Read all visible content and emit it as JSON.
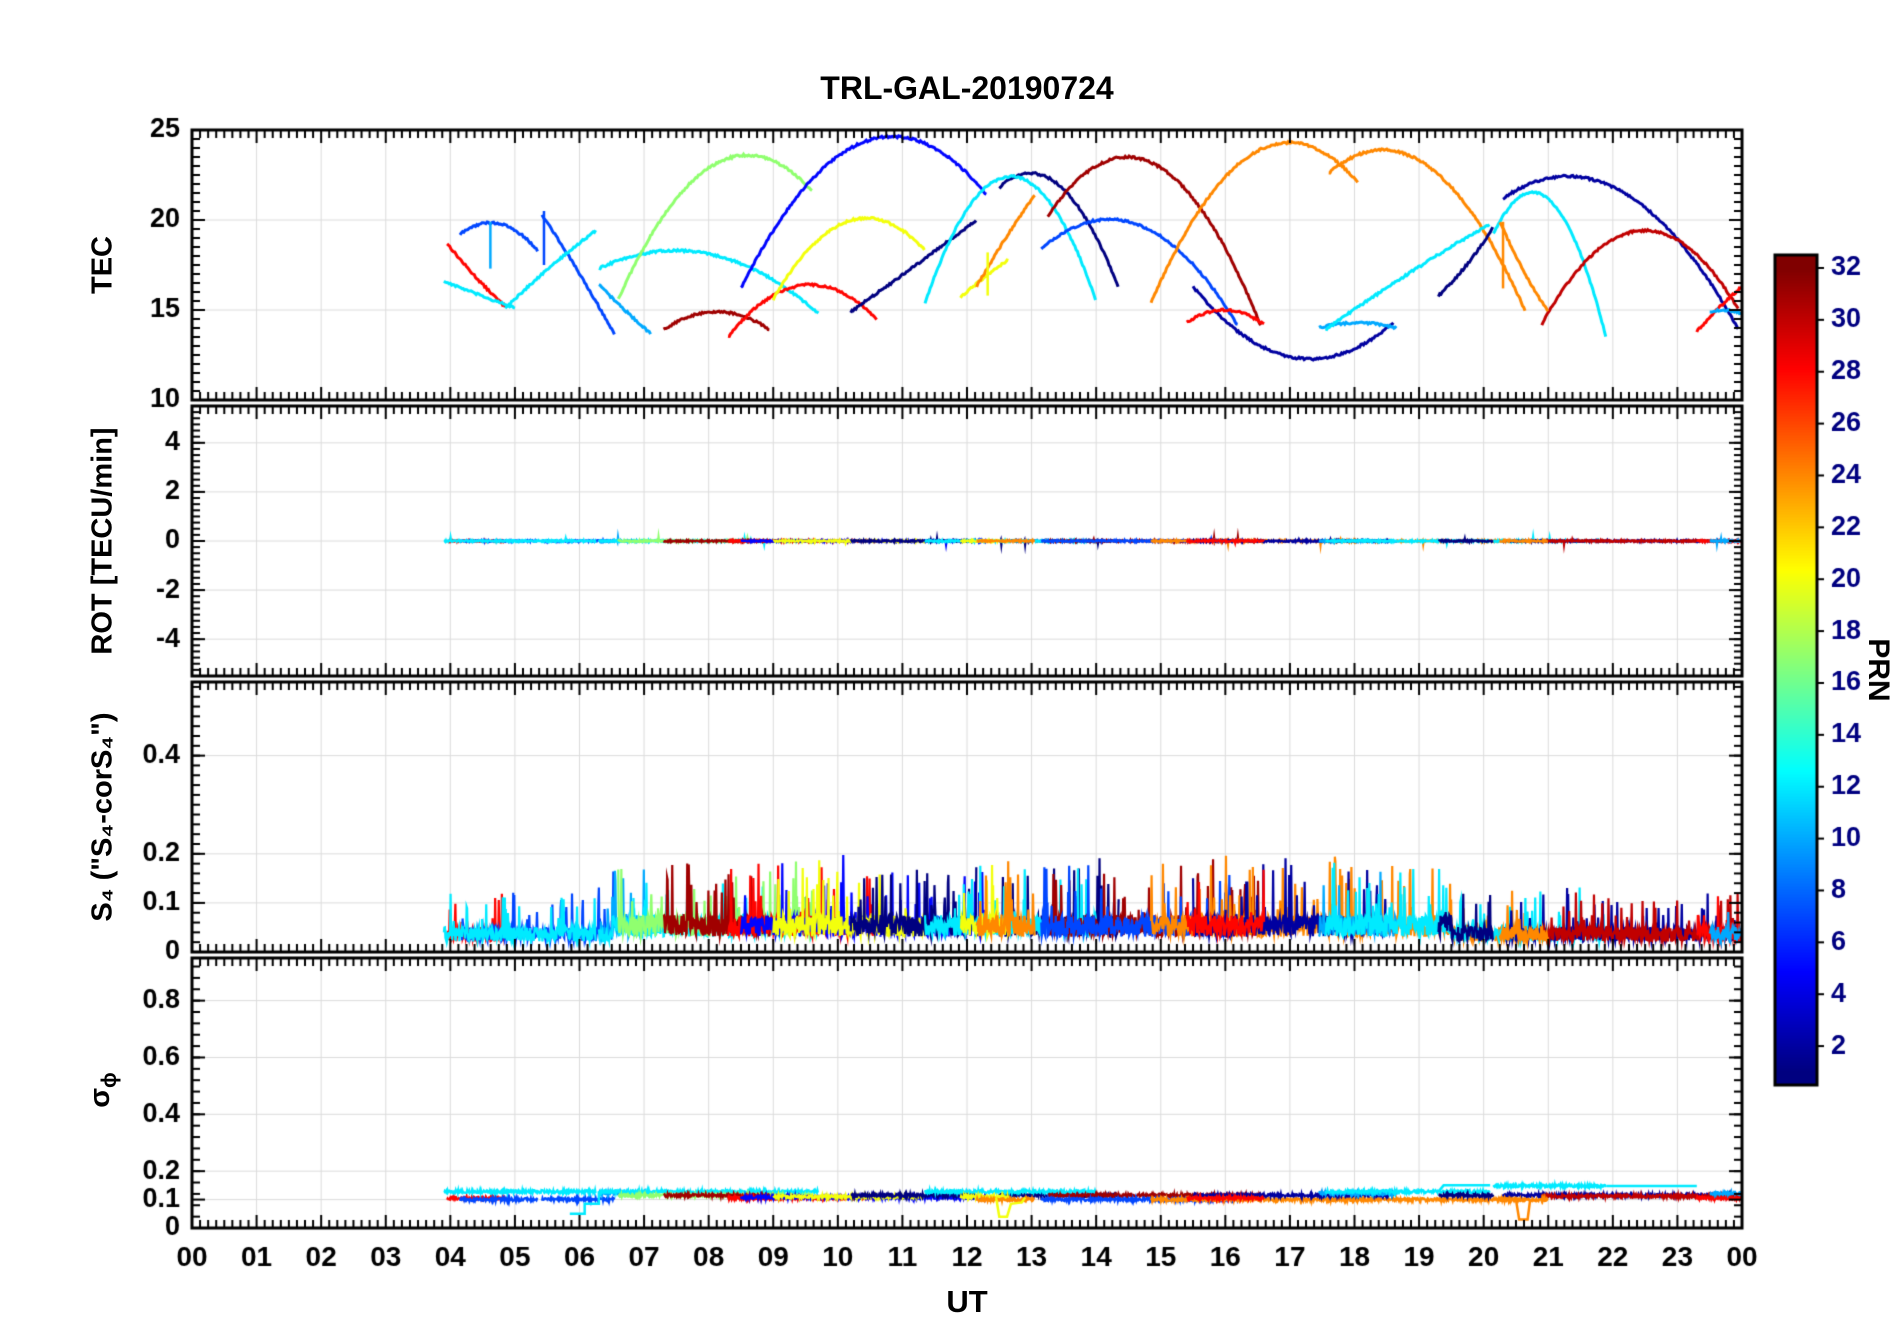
{
  "title": "TRL-GAL-20190724",
  "sigma_label": {
    "base": "σ",
    "sub": "ϕ"
  },
  "chart_data": {
    "type": "line",
    "title": "TRL-GAL-20190724",
    "xlabel": "UT",
    "x_range": [
      0,
      24
    ],
    "x_tick_labels": [
      "00",
      "01",
      "02",
      "03",
      "04",
      "05",
      "06",
      "07",
      "08",
      "09",
      "10",
      "11",
      "12",
      "13",
      "14",
      "15",
      "16",
      "17",
      "18",
      "19",
      "20",
      "21",
      "22",
      "23",
      "00"
    ],
    "grid": true,
    "colorbar": {
      "label": "PRN",
      "range": [
        1,
        32
      ],
      "ticks": [
        2,
        4,
        6,
        8,
        10,
        12,
        14,
        16,
        18,
        20,
        22,
        24,
        26,
        28,
        30,
        32
      ],
      "colormap": "jet"
    },
    "panels": [
      {
        "id": "tec",
        "ylabel": "TEC",
        "ylim": [
          10,
          25
        ],
        "yticks": [
          10,
          15,
          20,
          25
        ],
        "minor_step": 0.5
      },
      {
        "id": "rot",
        "ylabel": "ROT [TECU/min]",
        "ylim": [
          -5.5,
          5.5
        ],
        "yticks": [
          -4,
          -2,
          0,
          2,
          4
        ],
        "minor_step": 0.25
      },
      {
        "id": "s4",
        "ylabel": "S₄ (\"S₄-corS₄\")",
        "ylim": [
          0,
          0.55
        ],
        "yticks": [
          0,
          0.1,
          0.2,
          0.4
        ],
        "minor_step": 0.02
      },
      {
        "id": "sigma",
        "ylabel": "σϕ",
        "ylim": [
          0,
          0.95
        ],
        "yticks": [
          0,
          0.1,
          0.2,
          0.4,
          0.6,
          0.8
        ],
        "minor_step": 0.04
      }
    ],
    "arcs": [
      {
        "prn": 28,
        "t": [
          3.95,
          4.3,
          4.85
        ],
        "v": [
          18.7,
          17.2,
          15.2
        ],
        "sig": 0.105
      },
      {
        "prn": 7,
        "t": [
          4.15,
          4.75,
          5.35
        ],
        "v": [
          19.2,
          19.8,
          18.3
        ],
        "sig": 0.1
      },
      {
        "prn": 7,
        "t": [
          5.42,
          5.9,
          6.55
        ],
        "v": [
          20.3,
          17.6,
          13.6
        ],
        "sig": 0.1
      },
      {
        "prn": 12,
        "t": [
          3.9,
          4.4,
          5.0
        ],
        "v": [
          16.6,
          15.9,
          15.1
        ],
        "sig": 0.128
      },
      {
        "prn": 12,
        "t": [
          4.85,
          5.65,
          6.25
        ],
        "v": [
          15.1,
          17.7,
          19.4
        ],
        "sig": 0.128
      },
      {
        "prn": 10,
        "t": [
          6.3,
          6.7,
          7.1
        ],
        "v": [
          16.4,
          15.0,
          13.7
        ],
        "sig": 0.122
      },
      {
        "prn": 12,
        "t": [
          6.3,
          7.4,
          9.7
        ],
        "v": [
          17.3,
          18.3,
          14.8
        ],
        "sig": 0.128
      },
      {
        "prn": 17,
        "t": [
          6.6,
          8.65,
          9.6
        ],
        "v": [
          15.6,
          23.6,
          21.6
        ],
        "sig": 0.115
      },
      {
        "prn": 31,
        "t": [
          7.3,
          8.1,
          8.95
        ],
        "v": [
          13.9,
          14.9,
          13.9
        ],
        "sig": 0.115
      },
      {
        "prn": 28,
        "t": [
          8.3,
          9.6,
          10.6
        ],
        "v": [
          13.5,
          16.4,
          14.5
        ],
        "sig": 0.105
      },
      {
        "prn": 5,
        "t": [
          8.5,
          11.0,
          12.3
        ],
        "v": [
          16.2,
          24.6,
          21.4
        ],
        "sig": 0.108
      },
      {
        "prn": 20,
        "t": [
          9.0,
          10.45,
          11.35
        ],
        "v": [
          15.6,
          20.1,
          18.3
        ],
        "sig": 0.11
      },
      {
        "prn": 1,
        "t": [
          10.2,
          11.4,
          12.15
        ],
        "v": [
          14.9,
          18.0,
          20.0
        ],
        "sig": 0.115
      },
      {
        "prn": 1,
        "t": [
          12.5,
          13.0,
          14.35
        ],
        "v": [
          21.8,
          22.6,
          16.2
        ],
        "sig": 0.115
      },
      {
        "prn": 12,
        "t": [
          11.35,
          12.75,
          14.0
        ],
        "v": [
          15.4,
          22.4,
          15.5
        ],
        "sig": 0.128
      },
      {
        "prn": 20,
        "t": [
          11.9,
          12.3,
          12.65
        ],
        "v": [
          15.7,
          16.9,
          17.8
        ],
        "sig": 0.11
      },
      {
        "prn": 24,
        "t": [
          12.15,
          12.6,
          13.05
        ],
        "v": [
          16.3,
          19.0,
          21.4
        ],
        "sig": 0.1
      },
      {
        "prn": 31,
        "t": [
          13.25,
          15.0,
          16.55
        ],
        "v": [
          20.2,
          22.9,
          14.1
        ],
        "sig": 0.115
      },
      {
        "prn": 7,
        "t": [
          13.15,
          14.05,
          16.2
        ],
        "v": [
          18.4,
          20.0,
          14.1
        ],
        "sig": 0.1
      },
      {
        "prn": 24,
        "t": [
          14.85,
          17.0,
          18.05
        ],
        "v": [
          15.4,
          24.3,
          22.1
        ],
        "sig": 0.1
      },
      {
        "prn": 24,
        "t": [
          17.6,
          19.05,
          20.65
        ],
        "v": [
          22.6,
          23.2,
          14.9
        ],
        "sig": 0.1
      },
      {
        "prn": 2,
        "t": [
          15.5,
          16.4,
          18.6
        ],
        "v": [
          16.3,
          13.3,
          14.3
        ],
        "sig": 0.115
      },
      {
        "prn": 28,
        "t": [
          15.4,
          16.0,
          16.6
        ],
        "v": [
          14.3,
          15.0,
          14.2
        ],
        "sig": 0.105
      },
      {
        "prn": 10,
        "t": [
          17.45,
          18.05,
          18.65
        ],
        "v": [
          14.0,
          14.3,
          14.0
        ],
        "sig": 0.122
      },
      {
        "prn": 12,
        "t": [
          17.55,
          19.0,
          20.1
        ],
        "v": [
          13.9,
          17.4,
          19.8
        ],
        "sig": 0.128
      },
      {
        "prn": 12,
        "t": [
          20.15,
          21.05,
          21.9
        ],
        "v": [
          19.2,
          21.0,
          13.4
        ],
        "sig": 0.148
      },
      {
        "prn": 1,
        "t": [
          19.3,
          19.8,
          20.15
        ],
        "v": [
          15.8,
          17.8,
          19.6
        ],
        "sig": 0.115
      },
      {
        "prn": 2,
        "t": [
          20.3,
          21.45,
          23.95
        ],
        "v": [
          21.2,
          22.4,
          13.9
        ],
        "sig": 0.115
      },
      {
        "prn": 30,
        "t": [
          20.9,
          22.4,
          23.95
        ],
        "v": [
          14.2,
          19.4,
          15.0
        ],
        "sig": 0.112
      },
      {
        "prn": 24,
        "t": [
          20.25,
          20.6,
          21.0
        ],
        "v": [
          19.9,
          17.3,
          14.9
        ],
        "sig": 0.1
      },
      {
        "prn": 28,
        "t": [
          23.3,
          23.75,
          24.0
        ],
        "v": [
          13.8,
          15.5,
          16.3
        ],
        "sig": 0.105
      },
      {
        "prn": 10,
        "t": [
          23.5,
          23.75,
          24.0
        ],
        "v": [
          14.9,
          15.0,
          14.8
        ],
        "sig": 0.122
      }
    ],
    "tec_spikes": [
      {
        "prn": 7,
        "t": 5.45,
        "v": [
          17.5,
          20.5
        ]
      },
      {
        "prn": 10,
        "t": 4.62,
        "v": [
          17.3,
          19.9
        ]
      },
      {
        "prn": 20,
        "t": 12.32,
        "v": [
          15.8,
          18.2
        ]
      },
      {
        "prn": 24,
        "t": 20.3,
        "v": [
          16.2,
          19.9
        ]
      }
    ],
    "rot": {
      "baseline": 0,
      "noise_amp": 0.04
    },
    "s4": {
      "baseline": 0.05,
      "typical_max": 0.15,
      "spike_max": 0.2
    },
    "sigma_events": [
      {
        "prn": 12,
        "points": [
          [
            5.85,
            0.05
          ],
          [
            6.08,
            0.05
          ],
          [
            6.08,
            0.085
          ],
          [
            6.3,
            0.085
          ],
          [
            6.3,
            0.125
          ],
          [
            6.55,
            0.125
          ]
        ]
      },
      {
        "prn": 20,
        "points": [
          [
            12.45,
            0.108
          ],
          [
            12.5,
            0.04
          ],
          [
            12.62,
            0.04
          ],
          [
            12.68,
            0.085
          ],
          [
            12.85,
            0.09
          ],
          [
            12.9,
            0.108
          ]
        ]
      },
      {
        "prn": 24,
        "points": [
          [
            20.5,
            0.1
          ],
          [
            20.55,
            0.03
          ],
          [
            20.68,
            0.03
          ],
          [
            20.72,
            0.1
          ]
        ]
      },
      {
        "prn": 12,
        "points": [
          [
            19.3,
            0.128
          ],
          [
            19.38,
            0.15
          ],
          [
            20.1,
            0.15
          ]
        ]
      },
      {
        "prn": 12,
        "points": [
          [
            21.9,
            0.148
          ],
          [
            23.3,
            0.148
          ]
        ]
      }
    ]
  }
}
